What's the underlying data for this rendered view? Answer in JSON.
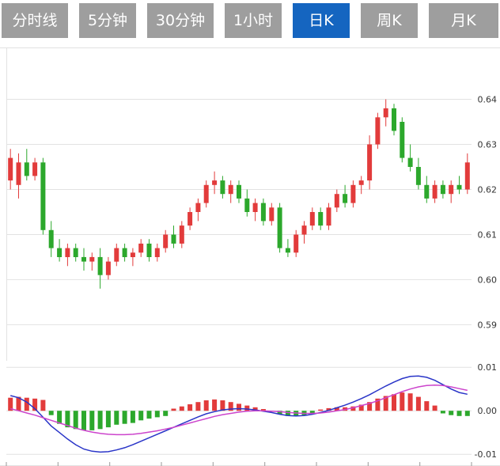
{
  "tabs": [
    {
      "label": "分时线",
      "active": false
    },
    {
      "label": "5分钟",
      "active": false
    },
    {
      "label": "30分钟",
      "active": false
    },
    {
      "label": "1小时",
      "active": false
    },
    {
      "label": "日K",
      "active": true
    },
    {
      "label": "周K",
      "active": false
    },
    {
      "label": "月K",
      "active": false
    }
  ],
  "colors": {
    "up": "#e23b3b",
    "down": "#2ca82c",
    "dif_line": "#2a35c8",
    "dea_line": "#cc44cc",
    "grid": "#e2e2e2",
    "axis_text": "#333333",
    "tick_mark": "#999999",
    "tab_bg": "#9e9e9e",
    "tab_active_bg": "#1565c0",
    "tab_text": "#ffffff"
  },
  "chart_data": {
    "type": "candlestick",
    "ohlc_format": "open,high,low,close",
    "main": {
      "ylim": [
        0.582,
        0.6515
      ],
      "ticks": [
        "0.64",
        "0.63",
        "0.62",
        "0.61",
        "0.60",
        "0.59"
      ],
      "tick_values": [
        0.64,
        0.63,
        0.62,
        0.61,
        0.6,
        0.59
      ],
      "candles_ohlc": [
        [
          0.622,
          0.629,
          0.62,
          0.627
        ],
        [
          0.621,
          0.628,
          0.618,
          0.626
        ],
        [
          0.626,
          0.629,
          0.622,
          0.623
        ],
        [
          0.623,
          0.627,
          0.622,
          0.626
        ],
        [
          0.626,
          0.627,
          0.61,
          0.611
        ],
        [
          0.611,
          0.613,
          0.605,
          0.607
        ],
        [
          0.607,
          0.609,
          0.604,
          0.605
        ],
        [
          0.605,
          0.608,
          0.603,
          0.607
        ],
        [
          0.607,
          0.608,
          0.604,
          0.605
        ],
        [
          0.605,
          0.607,
          0.602,
          0.604
        ],
        [
          0.604,
          0.606,
          0.602,
          0.605
        ],
        [
          0.605,
          0.607,
          0.598,
          0.601
        ],
        [
          0.601,
          0.605,
          0.6,
          0.604
        ],
        [
          0.604,
          0.608,
          0.603,
          0.607
        ],
        [
          0.607,
          0.608,
          0.604,
          0.605
        ],
        [
          0.605,
          0.607,
          0.603,
          0.606
        ],
        [
          0.606,
          0.609,
          0.605,
          0.608
        ],
        [
          0.608,
          0.609,
          0.604,
          0.605
        ],
        [
          0.605,
          0.608,
          0.604,
          0.607
        ],
        [
          0.607,
          0.611,
          0.606,
          0.61
        ],
        [
          0.61,
          0.612,
          0.607,
          0.608
        ],
        [
          0.608,
          0.613,
          0.607,
          0.612
        ],
        [
          0.612,
          0.616,
          0.611,
          0.615
        ],
        [
          0.615,
          0.618,
          0.613,
          0.617
        ],
        [
          0.617,
          0.622,
          0.616,
          0.621
        ],
        [
          0.621,
          0.624,
          0.619,
          0.622
        ],
        [
          0.622,
          0.623,
          0.618,
          0.619
        ],
        [
          0.619,
          0.622,
          0.617,
          0.621
        ],
        [
          0.621,
          0.622,
          0.617,
          0.618
        ],
        [
          0.618,
          0.62,
          0.614,
          0.615
        ],
        [
          0.615,
          0.618,
          0.613,
          0.617
        ],
        [
          0.617,
          0.618,
          0.612,
          0.613
        ],
        [
          0.613,
          0.617,
          0.612,
          0.616
        ],
        [
          0.616,
          0.617,
          0.606,
          0.607
        ],
        [
          0.607,
          0.609,
          0.605,
          0.606
        ],
        [
          0.606,
          0.611,
          0.605,
          0.61
        ],
        [
          0.61,
          0.613,
          0.608,
          0.612
        ],
        [
          0.612,
          0.616,
          0.611,
          0.615
        ],
        [
          0.615,
          0.616,
          0.611,
          0.612
        ],
        [
          0.612,
          0.617,
          0.611,
          0.616
        ],
        [
          0.616,
          0.62,
          0.615,
          0.619
        ],
        [
          0.619,
          0.621,
          0.616,
          0.617
        ],
        [
          0.617,
          0.622,
          0.616,
          0.621
        ],
        [
          0.621,
          0.623,
          0.619,
          0.622
        ],
        [
          0.622,
          0.632,
          0.62,
          0.63
        ],
        [
          0.63,
          0.637,
          0.629,
          0.636
        ],
        [
          0.636,
          0.64,
          0.634,
          0.638
        ],
        [
          0.638,
          0.639,
          0.632,
          0.633
        ],
        [
          0.635,
          0.636,
          0.626,
          0.627
        ],
        [
          0.627,
          0.63,
          0.624,
          0.625
        ],
        [
          0.625,
          0.627,
          0.62,
          0.621
        ],
        [
          0.621,
          0.623,
          0.617,
          0.618
        ],
        [
          0.618,
          0.622,
          0.617,
          0.621
        ],
        [
          0.621,
          0.622,
          0.618,
          0.619
        ],
        [
          0.619,
          0.622,
          0.617,
          0.621
        ],
        [
          0.621,
          0.623,
          0.619,
          0.62
        ],
        [
          0.62,
          0.628,
          0.619,
          0.626
        ]
      ]
    },
    "macd": {
      "ylim": [
        -0.0127,
        0.0115
      ],
      "ticks": [
        "0.01",
        "0.00",
        "-0.01"
      ],
      "tick_values": [
        0.01,
        0.0,
        -0.01
      ],
      "histogram": [
        0.003,
        0.0032,
        0.003,
        0.0028,
        0.0025,
        -0.001,
        -0.003,
        -0.0038,
        -0.0042,
        -0.0045,
        -0.0045,
        -0.0042,
        -0.0038,
        -0.0032,
        -0.003,
        -0.0028,
        -0.0022,
        -0.0018,
        -0.0015,
        -0.0012,
        0.0005,
        0.001,
        0.0015,
        0.002,
        0.0024,
        0.0026,
        0.0024,
        0.002,
        0.0016,
        0.0012,
        0.0008,
        0.0004,
        -0.0002,
        -0.0008,
        -0.0012,
        -0.0012,
        -0.001,
        -0.0006,
        0.0003,
        0.0006,
        0.0008,
        0.0008,
        0.001,
        0.0014,
        0.002,
        0.0028,
        0.0034,
        0.0038,
        0.0042,
        0.004,
        0.0032,
        0.0022,
        0.0012,
        -0.0006,
        -0.001,
        -0.0012,
        -0.0012
      ],
      "dif": [
        0.0035,
        0.003,
        0.002,
        0.0005,
        -0.0015,
        -0.0035,
        -0.005,
        -0.0065,
        -0.0078,
        -0.0088,
        -0.0093,
        -0.0095,
        -0.0094,
        -0.009,
        -0.0085,
        -0.0078,
        -0.007,
        -0.0062,
        -0.0054,
        -0.0046,
        -0.0038,
        -0.003,
        -0.0022,
        -0.0014,
        -0.0007,
        -0.0002,
        0.0002,
        0.0004,
        0.0005,
        0.0004,
        0.0002,
        -0.0001,
        -0.0004,
        -0.0008,
        -0.0011,
        -0.0012,
        -0.0011,
        -0.0008,
        -0.0004,
        0.0001,
        0.0007,
        0.0013,
        0.002,
        0.0028,
        0.0037,
        0.0047,
        0.0057,
        0.0066,
        0.0074,
        0.0079,
        0.008,
        0.0077,
        0.007,
        0.006,
        0.005,
        0.0042,
        0.0038
      ],
      "dea": [
        0.0005,
        0.0,
        -0.0005,
        -0.001,
        -0.0016,
        -0.0022,
        -0.0028,
        -0.0034,
        -0.004,
        -0.0045,
        -0.0049,
        -0.0052,
        -0.0054,
        -0.0055,
        -0.0055,
        -0.0054,
        -0.0052,
        -0.0049,
        -0.0046,
        -0.0042,
        -0.0038,
        -0.0033,
        -0.0028,
        -0.0023,
        -0.0018,
        -0.0013,
        -0.0009,
        -0.0006,
        -0.0003,
        -0.0001,
        0.0,
        0.0,
        -0.0001,
        -0.0002,
        -0.0004,
        -0.0005,
        -0.0006,
        -0.0006,
        -0.0005,
        -0.0003,
        0.0,
        0.0003,
        0.0007,
        0.0012,
        0.0017,
        0.0023,
        0.003,
        0.0037,
        0.0044,
        0.005,
        0.0055,
        0.0058,
        0.0059,
        0.0058,
        0.0055,
        0.0051,
        0.0047
      ]
    }
  }
}
